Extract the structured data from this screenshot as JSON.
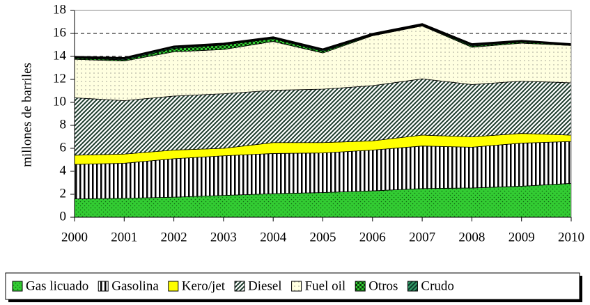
{
  "chart_data": {
    "type": "stacked-area",
    "y_label": "millones de barriles",
    "categories": [
      "2000",
      "2001",
      "2002",
      "2003",
      "2004",
      "2005",
      "2006",
      "2007",
      "2008",
      "2009",
      "2010"
    ],
    "series": [
      {
        "name": "Gas licuado",
        "color": "#33cc33",
        "pattern": "dots",
        "values": [
          1.6,
          1.65,
          1.75,
          1.9,
          2.05,
          2.15,
          2.3,
          2.5,
          2.55,
          2.7,
          2.95
        ]
      },
      {
        "name": "Gasolina",
        "color": "#ffffff",
        "pattern": "vstripes",
        "values": [
          3.0,
          3.05,
          3.35,
          3.45,
          3.5,
          3.45,
          3.55,
          3.7,
          3.55,
          3.75,
          3.65
        ]
      },
      {
        "name": "Kero/jet",
        "color": "#ffff00",
        "pattern": "solid",
        "values": [
          0.8,
          0.8,
          0.75,
          0.65,
          0.95,
          0.9,
          0.8,
          0.95,
          0.9,
          0.85,
          0.55
        ]
      },
      {
        "name": "Diesel",
        "color": "#ffffff",
        "pattern": "diag",
        "values": [
          5.0,
          4.65,
          4.7,
          4.75,
          4.55,
          4.65,
          4.8,
          4.9,
          4.55,
          4.55,
          4.55
        ]
      },
      {
        "name": "Fuel oil",
        "color": "#ffffe0",
        "pattern": "sparse",
        "values": [
          3.35,
          3.45,
          3.85,
          3.85,
          4.25,
          3.15,
          4.35,
          4.6,
          3.25,
          3.3,
          3.25
        ]
      },
      {
        "name": "Otros",
        "color": "#33cc33",
        "pattern": "check",
        "values": [
          0.1,
          0.1,
          0.3,
          0.4,
          0.25,
          0.15,
          0.05,
          0.05,
          0.1,
          0.1,
          0.05
        ]
      },
      {
        "name": "Crudo",
        "color": "#339966",
        "pattern": "diag",
        "values": [
          0.1,
          0.15,
          0.15,
          0.1,
          0.1,
          0.15,
          0.1,
          0.1,
          0.15,
          0.1,
          0.05
        ]
      }
    ],
    "ylim": [
      0,
      18
    ],
    "yticks": [
      0,
      2,
      4,
      6,
      8,
      10,
      12,
      14,
      16,
      18
    ],
    "grid": true
  }
}
